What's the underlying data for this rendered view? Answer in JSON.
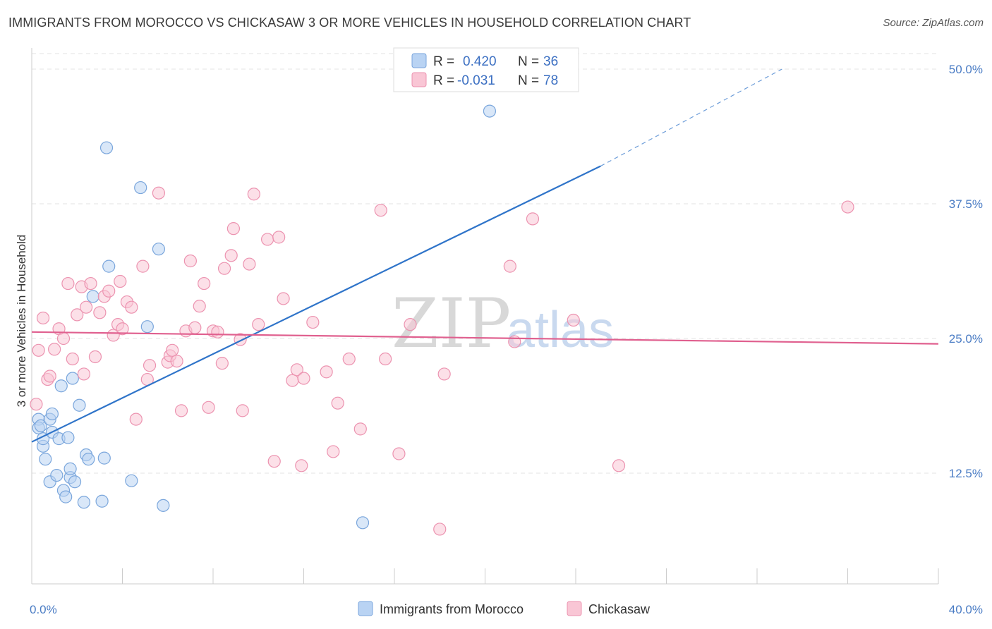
{
  "title": "IMMIGRANTS FROM MOROCCO VS CHICKASAW 3 OR MORE VEHICLES IN HOUSEHOLD CORRELATION CHART",
  "source": "Source: ZipAtlas.com",
  "watermark": {
    "zip": "ZIP",
    "atlas": "atlas"
  },
  "legend": {
    "r_label": "R =",
    "n_label": "N =",
    "rows": [
      {
        "r": "0.420",
        "n": "36",
        "color": "#b9d3f3",
        "stroke": "#7aa6dc"
      },
      {
        "r": "-0.031",
        "n": "78",
        "color": "#f9c6d5",
        "stroke": "#ec93b0"
      }
    ]
  },
  "bottom_legend": [
    {
      "label": "Immigrants from Morocco",
      "color": "#b9d3f3",
      "stroke": "#7aa6dc"
    },
    {
      "label": "Chickasaw",
      "color": "#f9c6d5",
      "stroke": "#ec93b0"
    }
  ],
  "chart_data": {
    "type": "scatter",
    "title": "IMMIGRANTS FROM MOROCCO VS CHICKASAW 3 OR MORE VEHICLES IN HOUSEHOLD CORRELATION CHART",
    "xlabel": "",
    "ylabel": "3 or more Vehicles in Household",
    "xlim": [
      0,
      40
    ],
    "ylim": [
      0,
      52
    ],
    "x_tick_labels": [
      {
        "value": 0,
        "label": "0.0%"
      },
      {
        "value": 40,
        "label": "40.0%"
      }
    ],
    "y_tick_labels": [
      {
        "value": 12.5,
        "label": "12.5%"
      },
      {
        "value": 25,
        "label": "25.0%"
      },
      {
        "value": 37.5,
        "label": "37.5%"
      },
      {
        "value": 50,
        "label": "50.0%"
      }
    ],
    "grid": true,
    "legend_position": "top-center",
    "series": [
      {
        "name": "Immigrants from Morocco",
        "color": "#b9d3f3",
        "stroke": "#7aa6dc",
        "line_color": "#2f74c9",
        "trend": {
          "x0": 0,
          "y0": 15.4,
          "x1": 25.1,
          "y1": 41.0,
          "dash_x1": 33.1,
          "dash_y1": 50.0
        },
        "points": [
          [
            0.3,
            17.5
          ],
          [
            0.3,
            16.7
          ],
          [
            0.4,
            16.9
          ],
          [
            0.5,
            15.0
          ],
          [
            0.5,
            15.7
          ],
          [
            0.6,
            13.8
          ],
          [
            0.8,
            17.5
          ],
          [
            0.9,
            18.0
          ],
          [
            0.9,
            16.3
          ],
          [
            0.8,
            11.7
          ],
          [
            1.1,
            12.3
          ],
          [
            1.2,
            15.7
          ],
          [
            1.3,
            20.6
          ],
          [
            1.4,
            10.9
          ],
          [
            1.5,
            10.3
          ],
          [
            1.6,
            15.8
          ],
          [
            1.7,
            12.1
          ],
          [
            1.7,
            12.9
          ],
          [
            1.8,
            21.3
          ],
          [
            1.9,
            11.7
          ],
          [
            2.1,
            18.8
          ],
          [
            2.3,
            9.8
          ],
          [
            2.4,
            14.2
          ],
          [
            2.5,
            13.8
          ],
          [
            2.7,
            28.9
          ],
          [
            3.1,
            9.9
          ],
          [
            3.2,
            13.9
          ],
          [
            3.4,
            31.7
          ],
          [
            3.3,
            42.7
          ],
          [
            4.4,
            11.8
          ],
          [
            4.8,
            39.0
          ],
          [
            5.1,
            26.1
          ],
          [
            5.6,
            33.3
          ],
          [
            5.8,
            9.5
          ],
          [
            14.6,
            7.9
          ],
          [
            20.2,
            46.1
          ]
        ]
      },
      {
        "name": "Chickasaw",
        "color": "#f9c6d5",
        "stroke": "#ec93b0",
        "line_color": "#e0608f",
        "trend": {
          "x0": 0,
          "y0": 25.6,
          "x1": 40,
          "y1": 24.5
        },
        "points": [
          [
            0.2,
            18.9
          ],
          [
            0.3,
            23.9
          ],
          [
            0.5,
            26.9
          ],
          [
            0.7,
            21.2
          ],
          [
            0.8,
            21.5
          ],
          [
            1.0,
            24.0
          ],
          [
            1.2,
            25.9
          ],
          [
            1.4,
            25.0
          ],
          [
            1.6,
            30.1
          ],
          [
            1.8,
            23.1
          ],
          [
            2.0,
            27.2
          ],
          [
            2.2,
            29.8
          ],
          [
            2.3,
            21.7
          ],
          [
            2.4,
            27.9
          ],
          [
            2.6,
            30.1
          ],
          [
            2.8,
            23.3
          ],
          [
            3.0,
            27.4
          ],
          [
            3.2,
            28.9
          ],
          [
            3.4,
            29.4
          ],
          [
            3.6,
            25.3
          ],
          [
            3.8,
            26.3
          ],
          [
            3.9,
            30.3
          ],
          [
            4.0,
            25.9
          ],
          [
            4.2,
            28.4
          ],
          [
            4.4,
            27.9
          ],
          [
            4.6,
            17.5
          ],
          [
            4.9,
            31.7
          ],
          [
            5.1,
            21.2
          ],
          [
            5.2,
            22.5
          ],
          [
            5.6,
            38.5
          ],
          [
            6.0,
            22.8
          ],
          [
            6.1,
            23.4
          ],
          [
            6.2,
            23.9
          ],
          [
            6.4,
            22.9
          ],
          [
            6.6,
            18.3
          ],
          [
            6.8,
            25.7
          ],
          [
            7.0,
            32.2
          ],
          [
            7.2,
            26.0
          ],
          [
            7.4,
            28.0
          ],
          [
            7.6,
            30.1
          ],
          [
            7.8,
            18.6
          ],
          [
            8.0,
            25.7
          ],
          [
            8.2,
            25.6
          ],
          [
            8.4,
            22.7
          ],
          [
            8.5,
            31.5
          ],
          [
            8.8,
            32.7
          ],
          [
            8.9,
            35.2
          ],
          [
            9.2,
            24.9
          ],
          [
            9.3,
            18.3
          ],
          [
            9.6,
            31.9
          ],
          [
            9.8,
            38.4
          ],
          [
            10.0,
            26.3
          ],
          [
            10.4,
            34.2
          ],
          [
            10.7,
            13.6
          ],
          [
            10.9,
            34.4
          ],
          [
            11.1,
            28.7
          ],
          [
            11.5,
            21.1
          ],
          [
            11.7,
            22.1
          ],
          [
            11.9,
            13.2
          ],
          [
            12.0,
            21.3
          ],
          [
            12.4,
            26.5
          ],
          [
            13.0,
            21.9
          ],
          [
            13.3,
            14.5
          ],
          [
            13.5,
            19.0
          ],
          [
            14.0,
            23.1
          ],
          [
            14.5,
            16.6
          ],
          [
            15.4,
            36.9
          ],
          [
            15.6,
            23.1
          ],
          [
            16.2,
            14.3
          ],
          [
            16.7,
            26.3
          ],
          [
            18.0,
            7.3
          ],
          [
            18.2,
            21.7
          ],
          [
            21.1,
            31.7
          ],
          [
            21.3,
            24.7
          ],
          [
            22.1,
            36.1
          ],
          [
            23.9,
            26.7
          ],
          [
            25.9,
            13.2
          ],
          [
            36.0,
            37.2
          ]
        ]
      }
    ]
  }
}
